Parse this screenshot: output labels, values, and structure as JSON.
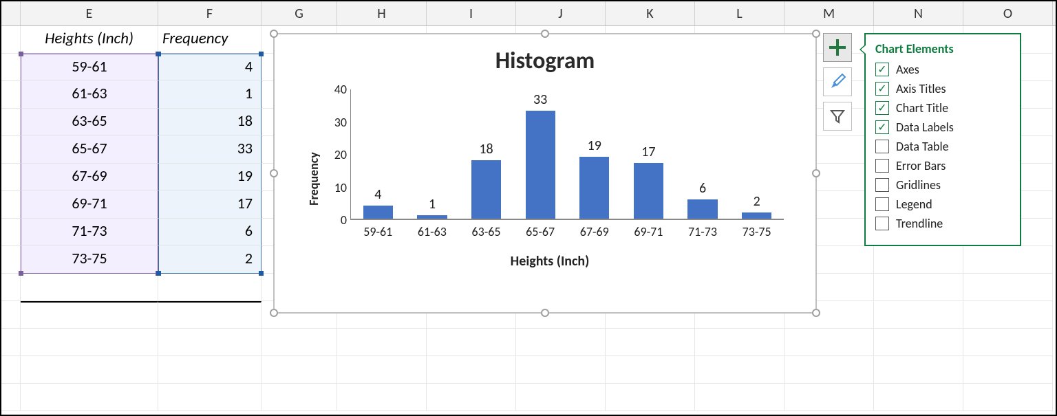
{
  "columns": {
    "widths": {
      "gutter": 28,
      "E": 200,
      "F": 150,
      "G": 110,
      "std": 130
    },
    "headers": [
      "E",
      "F",
      "G",
      "H",
      "I",
      "J",
      "K",
      "L",
      "M",
      "N",
      "O"
    ]
  },
  "table": {
    "header_e": "Heights (Inch)",
    "header_f": "Frequency",
    "rows": [
      {
        "range": "59-61",
        "freq": "4"
      },
      {
        "range": "61-63",
        "freq": "1"
      },
      {
        "range": "63-65",
        "freq": "18"
      },
      {
        "range": "65-67",
        "freq": "33"
      },
      {
        "range": "67-69",
        "freq": "19"
      },
      {
        "range": "69-71",
        "freq": "17"
      },
      {
        "range": "71-73",
        "freq": "6"
      },
      {
        "range": "73-75",
        "freq": "2"
      }
    ],
    "selection_colors": {
      "e_border": "#7a5fa0",
      "e_fill": "#f3efff",
      "f_border": "#3a6ea5",
      "f_fill": "#ecf3fb"
    }
  },
  "chart": {
    "title": "Histogram",
    "type": "bar",
    "categories": [
      "59-61",
      "61-63",
      "63-65",
      "65-67",
      "67-69",
      "69-71",
      "71-73",
      "73-75"
    ],
    "values": [
      4,
      1,
      18,
      33,
      19,
      17,
      6,
      2
    ],
    "bar_color": "#4472c4",
    "y_title": "Frequency",
    "x_title": "Heights (Inch)",
    "ylim": [
      0,
      40
    ],
    "ytick_step": 10,
    "title_fontsize": 34,
    "label_fontsize": 20,
    "tick_fontsize": 18,
    "background_color": "#ffffff",
    "axis_color": "#888888",
    "bar_width_ratio": 0.55
  },
  "side_buttons": {
    "plus": "plus-icon",
    "brush": "brush-icon",
    "filter": "filter-icon"
  },
  "flyout": {
    "title": "Chart Elements",
    "items": [
      {
        "label": "Axes",
        "checked": true
      },
      {
        "label": "Axis Titles",
        "checked": true
      },
      {
        "label": "Chart Title",
        "checked": true
      },
      {
        "label": "Data Labels",
        "checked": true
      },
      {
        "label": "Data Table",
        "checked": false
      },
      {
        "label": "Error Bars",
        "checked": false
      },
      {
        "label": "Gridlines",
        "checked": false
      },
      {
        "label": "Legend",
        "checked": false
      },
      {
        "label": "Trendline",
        "checked": false
      }
    ],
    "border_color": "#0f7b3e"
  }
}
